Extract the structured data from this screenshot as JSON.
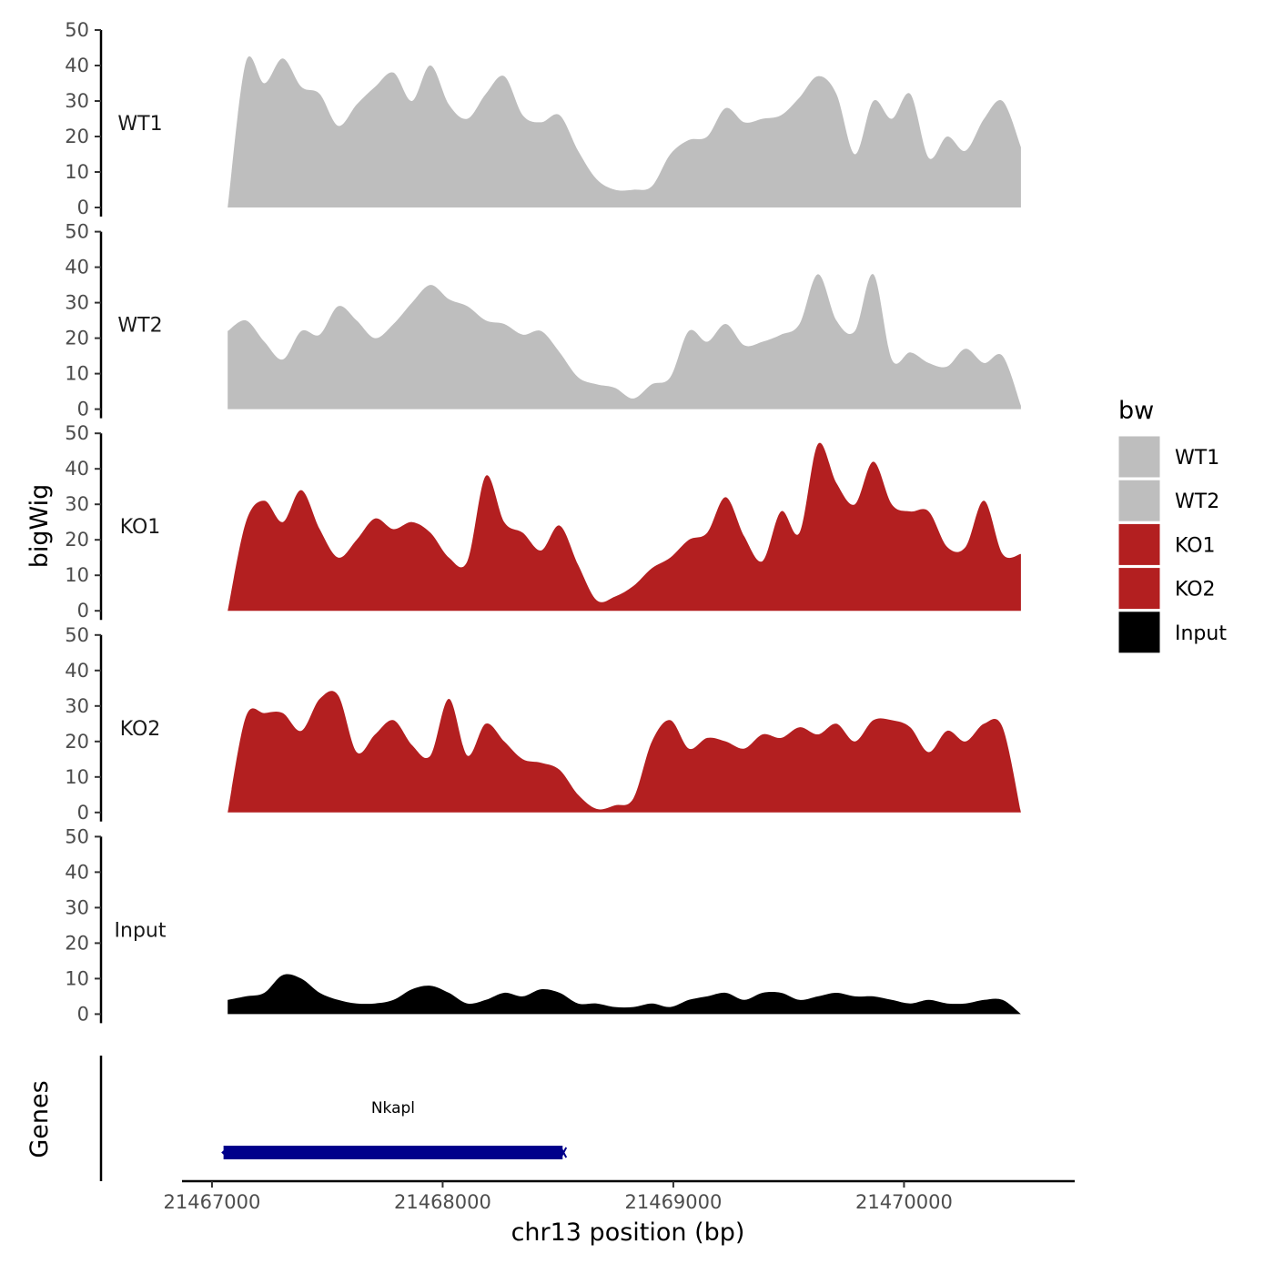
{
  "chart_data": {
    "type": "area",
    "ylabel": "bigWig",
    "xlabel": "chr13 position (bp)",
    "ylim": [
      0,
      50
    ],
    "y_ticks": [
      "0",
      "10",
      "20",
      "30",
      "40",
      "50"
    ],
    "xlim": [
      21466870,
      21470740
    ],
    "x_ticks": [
      {
        "value": 21467000,
        "label": "21467000"
      },
      {
        "value": 21468000,
        "label": "21468000"
      },
      {
        "value": 21469000,
        "label": "21469000"
      },
      {
        "value": 21470000,
        "label": "21470000"
      }
    ],
    "legend": {
      "title": "bw",
      "position": "right"
    },
    "x": [
      21467068,
      21467147,
      21467227,
      21467307,
      21467387,
      21467467,
      21467547,
      21467627,
      21467707,
      21467787,
      21467867,
      21467947,
      21468027,
      21468107,
      21468187,
      21468267,
      21468347,
      21468427,
      21468507,
      21468587,
      21468667,
      21468747,
      21468827,
      21468907,
      21468987,
      21469067,
      21469147,
      21469227,
      21469307,
      21469387,
      21469467,
      21469547,
      21469627,
      21469707,
      21469787,
      21469867,
      21469947,
      21470027,
      21470107,
      21470187,
      21470267,
      21470347,
      21470427,
      21470507
    ],
    "series": [
      {
        "name": "WT1",
        "color": "#bebebe",
        "values": [
          0,
          41,
          35,
          42,
          34,
          32,
          23,
          29,
          34,
          38,
          30,
          40,
          29,
          25,
          32,
          37,
          26,
          24,
          26,
          16,
          8,
          5,
          5,
          6,
          15,
          19,
          20,
          28,
          24,
          25,
          26,
          31,
          37,
          32,
          15,
          30,
          25,
          32,
          14,
          20,
          16,
          25,
          30,
          17
        ]
      },
      {
        "name": "WT2",
        "color": "#bebebe",
        "values": [
          22,
          25,
          19,
          14,
          22,
          21,
          29,
          25,
          20,
          24,
          30,
          35,
          31,
          29,
          25,
          24,
          21,
          22,
          16,
          9,
          7,
          6,
          3,
          7,
          9,
          22,
          19,
          24,
          18,
          19,
          21,
          24,
          38,
          25,
          22,
          38,
          14,
          16,
          13,
          12,
          17,
          13,
          15,
          1
        ]
      },
      {
        "name": "KO1",
        "color": "#b31f20",
        "values": [
          0,
          25,
          31,
          25,
          34,
          23,
          15,
          20,
          26,
          23,
          25,
          22,
          15,
          14,
          38,
          25,
          22,
          17,
          24,
          13,
          3,
          4,
          7,
          12,
          15,
          20,
          22,
          32,
          21,
          14,
          28,
          22,
          47,
          36,
          30,
          42,
          30,
          28,
          28,
          18,
          18,
          31,
          16,
          16
        ]
      },
      {
        "name": "KO2",
        "color": "#b31f20",
        "values": [
          0,
          27,
          28,
          28,
          23,
          32,
          33,
          17,
          22,
          26,
          19,
          16,
          32,
          16,
          25,
          20,
          15,
          14,
          12,
          5,
          1,
          2,
          4,
          20,
          26,
          18,
          21,
          20,
          18,
          22,
          21,
          24,
          22,
          25,
          20,
          26,
          26,
          24,
          17,
          23,
          20,
          25,
          24,
          0
        ]
      },
      {
        "name": "Input",
        "color": "#000000",
        "values": [
          4,
          5,
          6,
          11,
          10,
          6,
          4,
          3,
          3,
          4,
          7,
          8,
          6,
          3,
          4,
          6,
          5,
          7,
          6,
          3,
          3,
          2,
          2,
          3,
          2,
          4,
          5,
          6,
          4,
          6,
          6,
          4,
          5,
          6,
          5,
          5,
          4,
          3,
          4,
          3,
          3,
          4,
          4,
          0
        ]
      }
    ],
    "genes_track": {
      "ylabel": "Genes",
      "genes": [
        {
          "name": "Nkapl",
          "start": 21467050,
          "end": 21468520,
          "color": "#00008b"
        }
      ]
    }
  }
}
